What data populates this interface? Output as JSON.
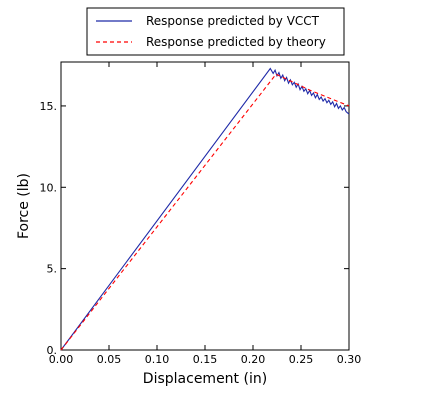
{
  "chart_data": {
    "type": "line",
    "xlabel": "Displacement (in)",
    "ylabel": "Force (lb)",
    "xlim": [
      0,
      0.3
    ],
    "ylim": [
      0,
      17.5
    ],
    "xticks": [
      "0.00",
      "0.05",
      "0.10",
      "0.15",
      "0.20",
      "0.25",
      "0.30"
    ],
    "yticks": [
      "0.",
      "5.",
      "10.",
      "15."
    ],
    "grid": false,
    "legend_position": "top",
    "series": [
      {
        "name": "Response predicted by VCCT",
        "color": "#1f2aa8",
        "style": "solid",
        "x": [
          0,
          0.218,
          0.221,
          0.223,
          0.225,
          0.227,
          0.229,
          0.231,
          0.233,
          0.235,
          0.237,
          0.239,
          0.241,
          0.243,
          0.245,
          0.247,
          0.249,
          0.251,
          0.253,
          0.255,
          0.257,
          0.259,
          0.261,
          0.263,
          0.265,
          0.267,
          0.269,
          0.271,
          0.273,
          0.275,
          0.277,
          0.279,
          0.281,
          0.283,
          0.285,
          0.287,
          0.289,
          0.291,
          0.293,
          0.295,
          0.297,
          0.3
        ],
        "y": [
          0,
          17.3,
          17.0,
          17.2,
          16.85,
          17.05,
          16.7,
          16.9,
          16.55,
          16.75,
          16.4,
          16.6,
          16.3,
          16.45,
          16.15,
          16.35,
          16.0,
          16.2,
          15.9,
          16.05,
          15.75,
          15.95,
          15.65,
          15.8,
          15.5,
          15.7,
          15.4,
          15.55,
          15.3,
          15.45,
          15.2,
          15.35,
          15.1,
          15.25,
          14.95,
          15.15,
          14.85,
          15.0,
          14.75,
          14.9,
          14.65,
          14.5
        ]
      },
      {
        "name": "Response predicted by theory",
        "color": "#ff0000",
        "style": "dashed",
        "x": [
          0,
          0.224,
          0.26,
          0.3
        ],
        "y": [
          0,
          16.95,
          15.95,
          15.0
        ]
      }
    ]
  }
}
